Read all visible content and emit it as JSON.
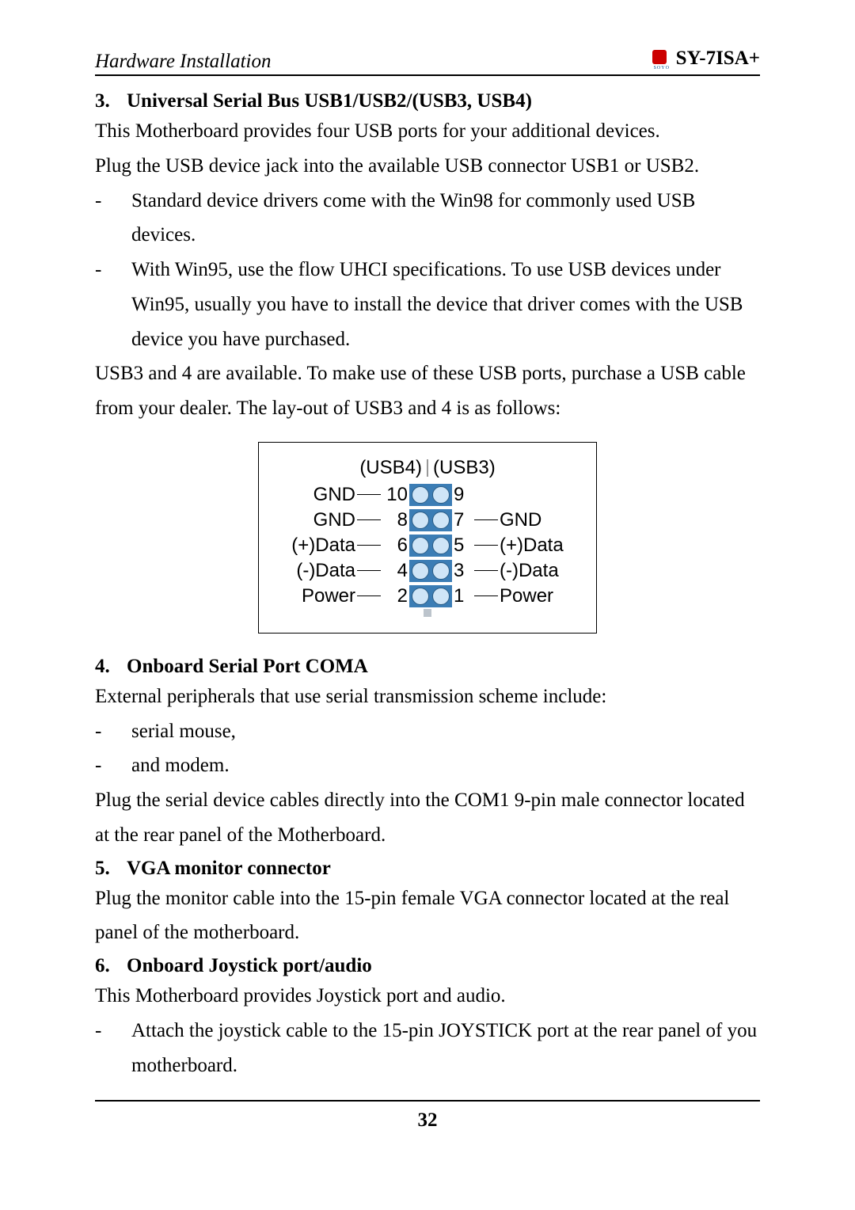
{
  "header": {
    "left": "Hardware Installation",
    "right": "SY-7ISA+"
  },
  "section3": {
    "num": "3.",
    "title": "Universal Serial Bus USB1/USB2/(USB3, USB4)",
    "intro1": "This Motherboard provides four USB ports for your additional devices.",
    "intro2": "Plug the USB device jack into the available USB connector USB1 or USB2.",
    "b1": "Standard device drivers come with the Win98 for commonly used USB devices.",
    "b2": "With Win95, use the flow UHCI specifications. To use USB devices under Win95, usually you have to install the device that driver comes with the USB device you have purchased.",
    "after": "USB3 and 4 are available. To make use of these USB ports, purchase a USB cable from your dealer. The lay-out of USB3 and 4 is as follows:"
  },
  "diagram": {
    "header_left": "(USB4)",
    "header_right": "(USB3)",
    "rows": [
      {
        "left_label": "GND",
        "left_num": "10",
        "right_num": "9",
        "right_label": ""
      },
      {
        "left_label": "GND",
        "left_num": "8",
        "right_num": "7",
        "right_label": "GND"
      },
      {
        "left_label": "(+)Data",
        "left_num": "6",
        "right_num": "5",
        "right_label": "(+)Data"
      },
      {
        "left_label": "(-)Data",
        "left_num": "4",
        "right_num": "3",
        "right_label": "(-)Data"
      },
      {
        "left_label": "Power",
        "left_num": "2",
        "right_num": "1",
        "right_label": "Power"
      }
    ]
  },
  "section4": {
    "num": "4.",
    "title": "Onboard Serial Port COMA",
    "intro": "External peripherals that use serial transmission scheme include:",
    "b1": "serial mouse,",
    "b2": "and modem.",
    "after": "Plug the serial device cables directly into the COM1 9-pin male connector located at the rear panel of the Motherboard."
  },
  "section5": {
    "num": "5.",
    "title": "VGA monitor connector",
    "text": "Plug the monitor cable into the 15-pin female VGA connector located at the real panel of the motherboard."
  },
  "section6": {
    "num": "6.",
    "title": "Onboard Joystick port/audio",
    "intro": "This Motherboard provides Joystick port and audio.",
    "b1": "Attach the joystick cable to the 15-pin JOYSTICK port at the rear panel of you motherboard."
  },
  "page_number": "32"
}
